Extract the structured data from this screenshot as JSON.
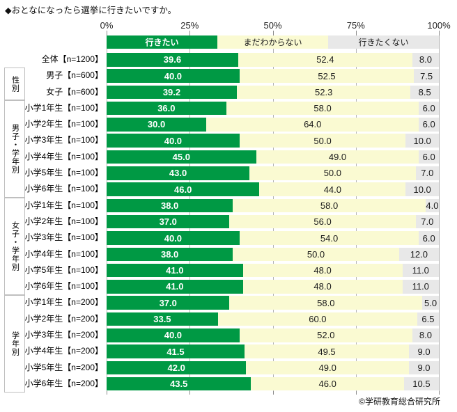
{
  "title": "◆おとなになったら選挙に行きたいですか。",
  "footer": "©学研教育総合研究所",
  "chart_data": {
    "type": "bar",
    "stacked": true,
    "orientation": "horizontal",
    "title": "おとなになったら選挙に行きたいですか。",
    "xlim": [
      0,
      100
    ],
    "x_ticks": [
      "0%",
      "25%",
      "50%",
      "75%",
      "100%"
    ],
    "grid": true,
    "legend_position": "top",
    "series": [
      {
        "name": "行きたい",
        "color": "#009944",
        "text_color": "#ffffff"
      },
      {
        "name": "まだわからない",
        "color": "#FAFAD2",
        "text_color": "#1a1a1a"
      },
      {
        "name": "行きたくない",
        "color": "#E8E8E8",
        "text_color": "#1a1a1a"
      }
    ],
    "groups": [
      {
        "name": "",
        "rows": [
          {
            "label": "全体【n=1200】",
            "values": [
              39.6,
              52.4,
              8.0
            ]
          }
        ]
      },
      {
        "name": "性別",
        "rows": [
          {
            "label": "男子【n=600】",
            "values": [
              40.0,
              52.5,
              7.5
            ]
          },
          {
            "label": "女子【n=600】",
            "values": [
              39.2,
              52.3,
              8.5
            ]
          }
        ]
      },
      {
        "name": "男子・学年別",
        "rows": [
          {
            "label": "小学1年生【n=100】",
            "values": [
              36.0,
              58.0,
              6.0
            ]
          },
          {
            "label": "小学2年生【n=100】",
            "values": [
              30.0,
              64.0,
              6.0
            ]
          },
          {
            "label": "小学3年生【n=100】",
            "values": [
              40.0,
              50.0,
              10.0
            ]
          },
          {
            "label": "小学4年生【n=100】",
            "values": [
              45.0,
              49.0,
              6.0
            ]
          },
          {
            "label": "小学5年生【n=100】",
            "values": [
              43.0,
              50.0,
              7.0
            ]
          },
          {
            "label": "小学6年生【n=100】",
            "values": [
              46.0,
              44.0,
              10.0
            ]
          }
        ]
      },
      {
        "name": "女子・学年別",
        "rows": [
          {
            "label": "小学1年生【n=100】",
            "values": [
              38.0,
              58.0,
              4.0
            ]
          },
          {
            "label": "小学2年生【n=100】",
            "values": [
              37.0,
              56.0,
              7.0
            ]
          },
          {
            "label": "小学3年生【n=100】",
            "values": [
              40.0,
              54.0,
              6.0
            ]
          },
          {
            "label": "小学4年生【n=100】",
            "values": [
              38.0,
              50.0,
              12.0
            ]
          },
          {
            "label": "小学5年生【n=100】",
            "values": [
              41.0,
              48.0,
              11.0
            ]
          },
          {
            "label": "小学6年生【n=100】",
            "values": [
              41.0,
              48.0,
              11.0
            ]
          }
        ]
      },
      {
        "name": "学年別",
        "rows": [
          {
            "label": "小学1年生【n=200】",
            "values": [
              37.0,
              58.0,
              5.0
            ]
          },
          {
            "label": "小学2年生【n=200】",
            "values": [
              33.5,
              60.0,
              6.5
            ]
          },
          {
            "label": "小学3年生【n=200】",
            "values": [
              40.0,
              52.0,
              8.0
            ]
          },
          {
            "label": "小学4年生【n=200】",
            "values": [
              41.5,
              49.5,
              9.0
            ]
          },
          {
            "label": "小学5年生【n=200】",
            "values": [
              42.0,
              49.0,
              9.0
            ]
          },
          {
            "label": "小学6年生【n=200】",
            "values": [
              43.5,
              46.0,
              10.5
            ]
          }
        ]
      }
    ]
  }
}
